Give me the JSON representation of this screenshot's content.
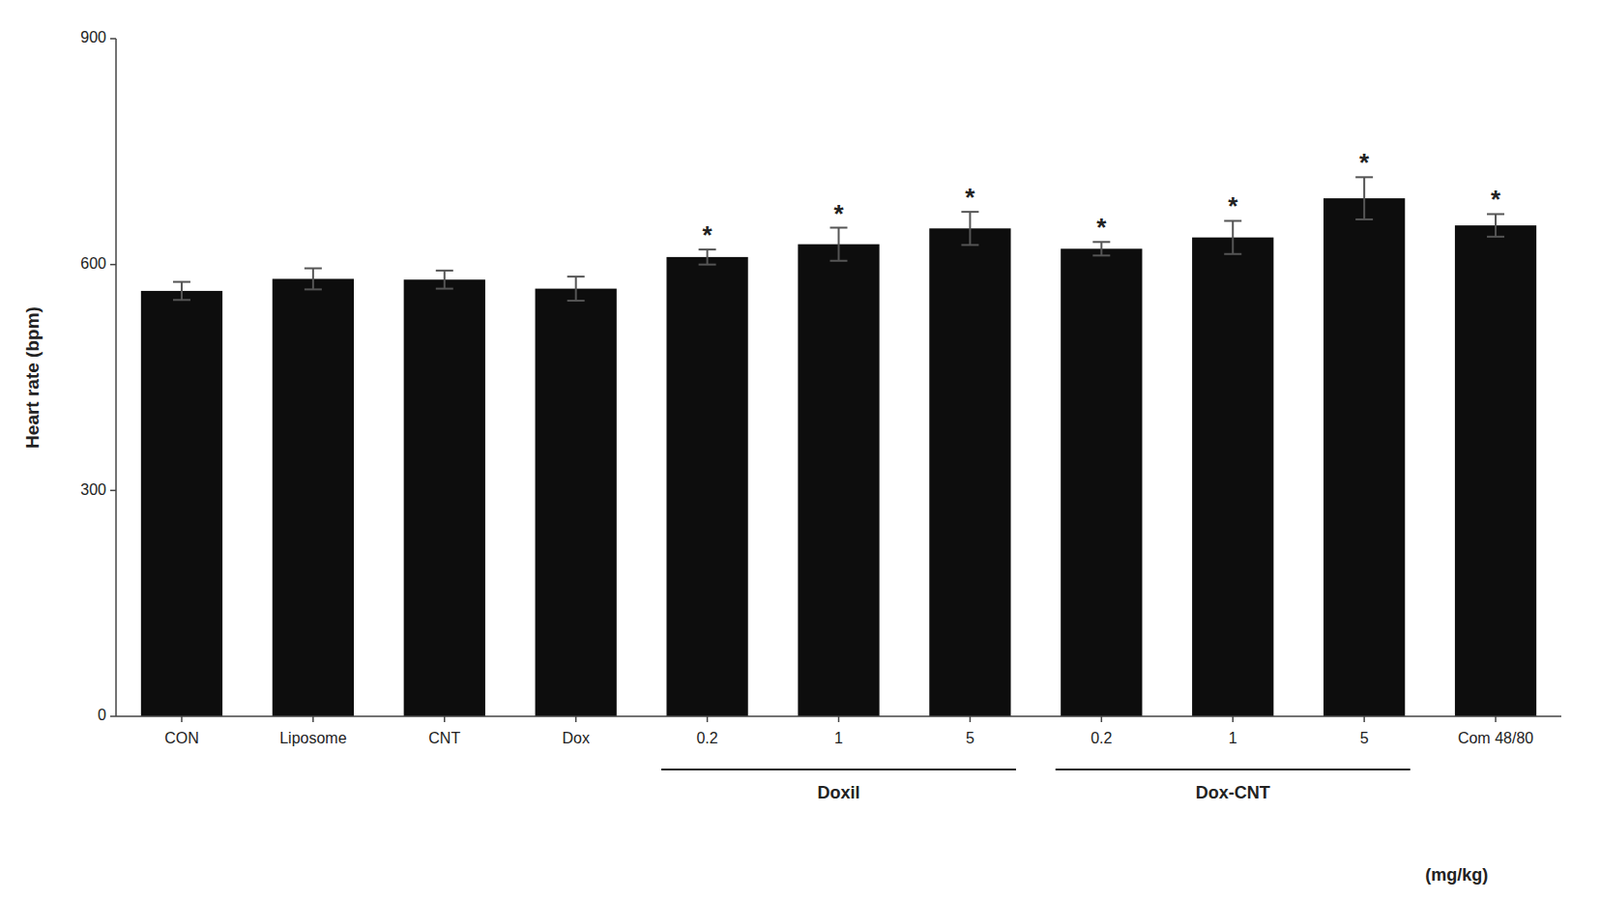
{
  "chart_data": {
    "type": "bar",
    "categories": [
      "CON",
      "Liposome",
      "CNT",
      "Dox",
      "0.2",
      "1",
      "5",
      "0.2",
      "1",
      "5",
      "Com 48/80"
    ],
    "values": [
      565,
      581,
      580,
      568,
      610,
      627,
      648,
      621,
      636,
      688,
      652
    ],
    "errors": [
      12,
      14,
      12,
      16,
      10,
      22,
      22,
      9,
      22,
      28,
      15
    ],
    "significance_labels": [
      null,
      null,
      null,
      null,
      "*",
      "*",
      "*",
      "*",
      "*",
      "*",
      "*"
    ],
    "color": "#0d0d0d",
    "ylabel": "Heart rate (bpm)",
    "ylim": [
      0,
      900
    ],
    "yticks": [
      0,
      300,
      600,
      900
    ],
    "grid": false,
    "groups": [
      {
        "label": "Doxil",
        "first": 4,
        "last": 6
      },
      {
        "label": "Dox-CNT",
        "first": 7,
        "last": 9
      }
    ],
    "footnote": "(mg/kg)"
  }
}
